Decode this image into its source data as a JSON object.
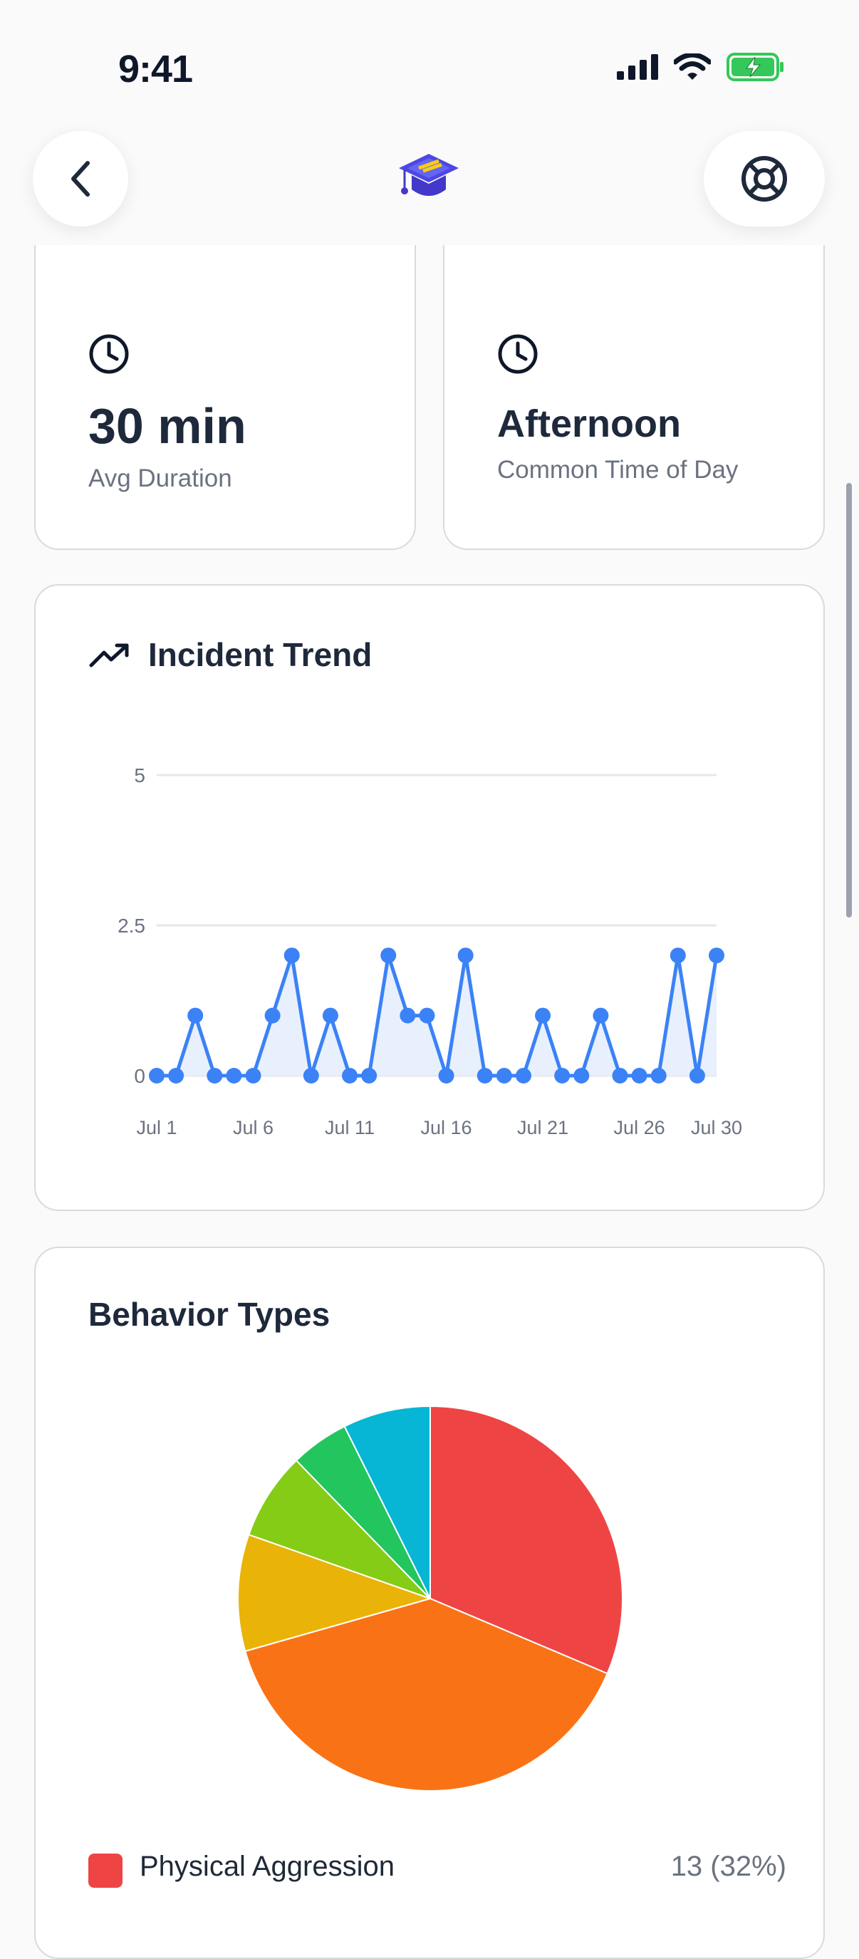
{
  "status_bar": {
    "time": "9:41"
  },
  "stats": [
    {
      "value": "30 min",
      "label": "Avg Duration",
      "icon": "clock-icon"
    },
    {
      "value": "Afternoon",
      "label": "Common Time of Day",
      "icon": "clock-icon"
    }
  ],
  "trend": {
    "title": "Incident Trend",
    "icon": "trending-up-icon"
  },
  "behavior": {
    "title": "Behavior Types",
    "legend": [
      {
        "label": "Physical Aggression",
        "value": "13 (32%)",
        "color": "#ef4444"
      }
    ]
  },
  "chart_data": [
    {
      "type": "line",
      "title": "Incident Trend",
      "x": [
        "Jul 1",
        "Jul 2",
        "Jul 3",
        "Jul 4",
        "Jul 5",
        "Jul 6",
        "Jul 7",
        "Jul 8",
        "Jul 9",
        "Jul 10",
        "Jul 11",
        "Jul 12",
        "Jul 13",
        "Jul 14",
        "Jul 15",
        "Jul 16",
        "Jul 17",
        "Jul 18",
        "Jul 19",
        "Jul 20",
        "Jul 21",
        "Jul 22",
        "Jul 23",
        "Jul 24",
        "Jul 25",
        "Jul 26",
        "Jul 27",
        "Jul 28",
        "Jul 29",
        "Jul 30"
      ],
      "values": [
        0,
        0,
        1,
        0,
        0,
        0,
        1,
        2,
        0,
        1,
        0,
        0,
        2,
        1,
        1,
        0,
        2,
        0,
        0,
        0,
        1,
        0,
        0,
        1,
        0,
        0,
        0,
        2,
        0,
        2
      ],
      "xticks": [
        "Jul 1",
        "Jul 6",
        "Jul 11",
        "Jul 16",
        "Jul 21",
        "Jul 26",
        "Jul 30"
      ],
      "yticks": [
        "0",
        "2.5",
        "5"
      ],
      "ylim": [
        0,
        5
      ],
      "color": "#3b82f6",
      "fill": "#e8f0fd",
      "grid": true
    },
    {
      "type": "pie",
      "slices": [
        {
          "value": 32,
          "color": "#ef4444"
        },
        {
          "value": 40,
          "color": "#f97316"
        },
        {
          "value": 10,
          "color": "#eab308"
        },
        {
          "value": 7.5,
          "color": "#84cc16"
        },
        {
          "value": 5,
          "color": "#22c55e"
        },
        {
          "value": 7.5,
          "color": "#06b6d4"
        }
      ]
    }
  ]
}
